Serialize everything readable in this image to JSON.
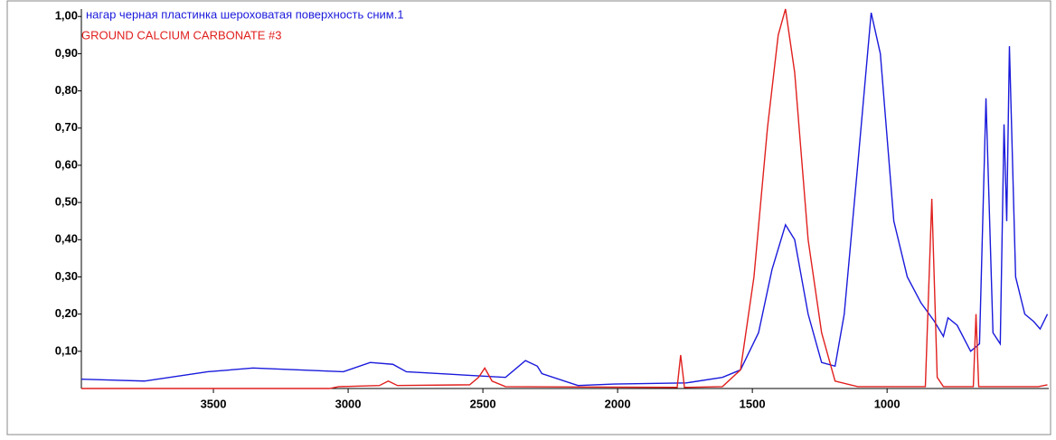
{
  "chart_data": {
    "type": "line",
    "xlim": [
      3990,
      400
    ],
    "ylim": [
      0,
      1.02
    ],
    "xticks": [
      3500,
      3000,
      2500,
      2000,
      1500,
      1000
    ],
    "yticks": [
      {
        "value": 0.1,
        "label": "0,10"
      },
      {
        "value": 0.2,
        "label": "0,20"
      },
      {
        "value": 0.3,
        "label": "0,30"
      },
      {
        "value": 0.4,
        "label": "0,40"
      },
      {
        "value": 0.5,
        "label": "0,50"
      },
      {
        "value": 0.6,
        "label": "0,60"
      },
      {
        "value": 0.7,
        "label": "0,70"
      },
      {
        "value": 0.8,
        "label": "0,80"
      },
      {
        "value": 0.9,
        "label": "0,90"
      },
      {
        "value": 1.0,
        "label": "1,00"
      }
    ],
    "series": [
      {
        "name": "нагар черная пластинка шероховатая поверхность сним.1",
        "color": "#1a1adc",
        "x": [
          3990,
          3756,
          3521,
          3353,
          3018,
          2918,
          2834,
          2784,
          2416,
          2342,
          2298,
          2281,
          2147,
          2013,
          1745,
          1611,
          1544,
          1477,
          1427,
          1377,
          1343,
          1293,
          1243,
          1193,
          1159,
          1109,
          1059,
          1025,
          975,
          925,
          874,
          824,
          791,
          774,
          740,
          690,
          657,
          633,
          607,
          580,
          566,
          556,
          546,
          523,
          489,
          456,
          432,
          405
        ],
        "values": [
          0.025,
          0.02,
          0.045,
          0.055,
          0.045,
          0.07,
          0.065,
          0.045,
          0.03,
          0.075,
          0.06,
          0.04,
          0.008,
          0.012,
          0.015,
          0.03,
          0.05,
          0.15,
          0.32,
          0.44,
          0.4,
          0.2,
          0.07,
          0.06,
          0.2,
          0.6,
          1.01,
          0.9,
          0.45,
          0.3,
          0.23,
          0.18,
          0.14,
          0.19,
          0.17,
          0.1,
          0.12,
          0.78,
          0.15,
          0.12,
          0.71,
          0.45,
          0.92,
          0.3,
          0.2,
          0.18,
          0.16,
          0.2
        ]
      },
      {
        "name": "GROUND CALCIUM CARBONATE #3",
        "color": "#e0201e",
        "x": [
          3990,
          3069,
          3035,
          2884,
          2851,
          2817,
          2549,
          2516,
          2493,
          2466,
          2416,
          1779,
          1766,
          1752,
          1611,
          1544,
          1494,
          1444,
          1404,
          1377,
          1343,
          1293,
          1243,
          1193,
          1109,
          858,
          834,
          814,
          791,
          680,
          670,
          660,
          439,
          405
        ],
        "values": [
          0,
          0,
          0.005,
          0.008,
          0.02,
          0.008,
          0.01,
          0.03,
          0.055,
          0.02,
          0.005,
          0.003,
          0.09,
          0.003,
          0.005,
          0.05,
          0.3,
          0.7,
          0.95,
          1.02,
          0.85,
          0.4,
          0.15,
          0.02,
          0.005,
          0.005,
          0.51,
          0.03,
          0.005,
          0.005,
          0.2,
          0.005,
          0.005,
          0.01
        ]
      }
    ]
  }
}
